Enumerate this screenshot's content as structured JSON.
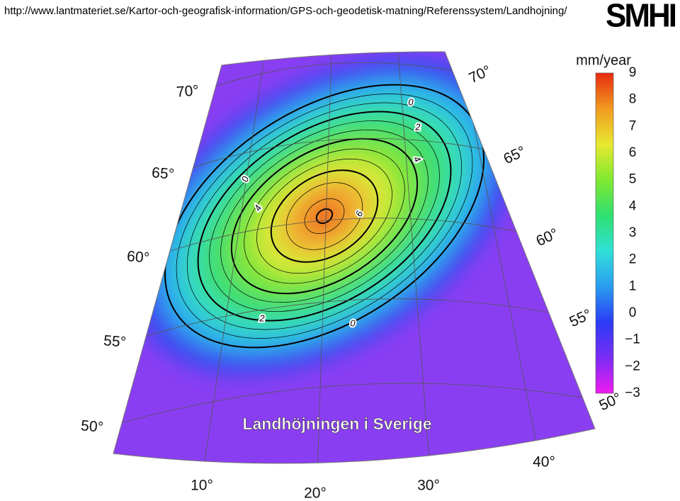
{
  "header": {
    "url": "http://www.lantmateriet.se/Kartor-och-geografisk-information/GPS-och-geodetisk-matning/Referenssystem/Landhojning/",
    "logo": "SMHI"
  },
  "map": {
    "title": "Landhöjningen i Sverige",
    "latitude_labels_left": [
      "70°",
      "65°",
      "60°",
      "55°",
      "50°"
    ],
    "latitude_labels_right": [
      "70°",
      "65°",
      "60°",
      "55°",
      "50°"
    ],
    "longitude_labels": [
      "10°",
      "20°",
      "30°",
      "40°"
    ],
    "contour_labels": [
      "0",
      "2",
      "4",
      "0",
      "4",
      "6",
      "2",
      "0"
    ]
  },
  "colorbar": {
    "unit": "mm/year",
    "lim": [
      -3,
      9
    ],
    "ticks": [
      9,
      8,
      7,
      6,
      5,
      4,
      3,
      2,
      1,
      0,
      {
        "value": -1,
        "label": "−1"
      },
      {
        "value": -2,
        "label": "−2"
      },
      {
        "value": -3,
        "label": "−3"
      }
    ],
    "colors": [
      "#f01bf0",
      "#7a2cf5",
      "#2a3cf5",
      "#2a9cf0",
      "#30e0d8",
      "#30e070",
      "#80e830",
      "#e8e830",
      "#f09a20",
      "#e82a10"
    ]
  }
}
